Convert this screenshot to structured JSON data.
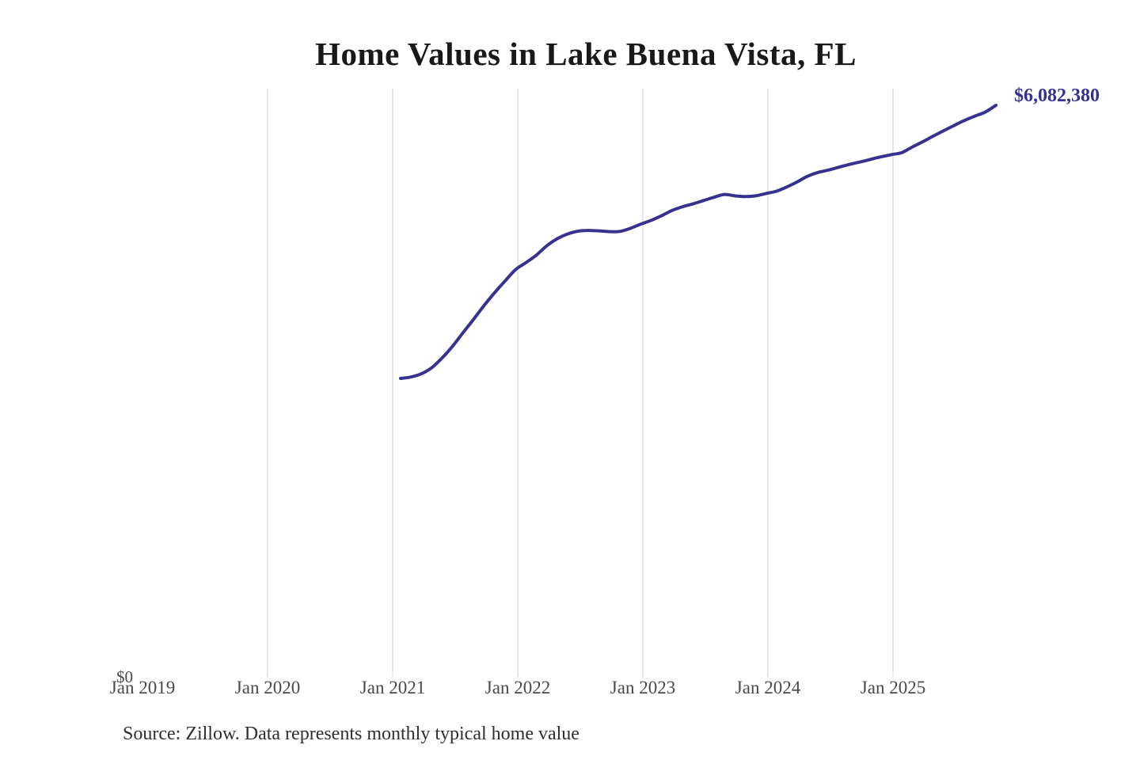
{
  "chart": {
    "title": "Home Values in Lake Buena Vista, FL",
    "end_label": "$6,082,380",
    "source": "Source: Zillow. Data represents monthly typical home value",
    "y_axis": {
      "zero_label": "$0"
    }
  },
  "colors": {
    "background": "#ffffff",
    "line": "#37318f",
    "end_label": "#37318f",
    "gridline": "#cfcfcf",
    "title_text": "#191919",
    "axis_text": "#4a4a4a",
    "source_text": "#2f2f2f"
  },
  "chart_data": {
    "type": "line",
    "title": "Home Values in Lake Buena Vista, FL",
    "series_name": "Monthly typical home value",
    "unit": "USD",
    "legend": "none",
    "grid": "vertical-only",
    "ylim": [
      0,
      6500000
    ],
    "final_value": 6082380,
    "final_value_label": "$6,082,380",
    "x_axis_ticks": [
      "Jan 2019",
      "Jan 2020",
      "Jan 2021",
      "Jan 2022",
      "Jan 2023",
      "Jan 2024",
      "Jan 2025"
    ],
    "x": [
      "2021-01",
      "2021-02",
      "2021-03",
      "2021-04",
      "2021-05",
      "2021-06",
      "2021-07",
      "2021-08",
      "2021-09",
      "2021-10",
      "2021-11",
      "2021-12",
      "2022-01",
      "2022-02",
      "2022-03",
      "2022-04",
      "2022-05",
      "2022-06",
      "2022-07",
      "2022-08",
      "2022-09",
      "2022-10",
      "2022-11",
      "2022-12",
      "2023-01",
      "2023-02",
      "2023-03",
      "2023-04",
      "2023-05",
      "2023-06",
      "2023-07",
      "2023-08",
      "2023-09",
      "2023-10",
      "2023-11",
      "2023-12",
      "2024-01",
      "2024-02",
      "2024-03",
      "2024-04",
      "2024-05",
      "2024-06",
      "2024-07",
      "2024-08",
      "2024-09",
      "2024-10",
      "2024-11",
      "2024-12",
      "2025-01",
      "2025-02",
      "2025-03",
      "2025-04",
      "2025-05",
      "2025-06",
      "2025-07",
      "2025-08",
      "2025-09",
      "2025-10"
    ],
    "values": [
      3180000,
      3195000,
      3230000,
      3295000,
      3400000,
      3525000,
      3670000,
      3810000,
      3955000,
      4090000,
      4215000,
      4335000,
      4410000,
      4490000,
      4590000,
      4665000,
      4715000,
      4745000,
      4752000,
      4748000,
      4740000,
      4742000,
      4775000,
      4820000,
      4860000,
      4910000,
      4965000,
      5005000,
      5035000,
      5070000,
      5105000,
      5135000,
      5120000,
      5112000,
      5120000,
      5145000,
      5170000,
      5215000,
      5270000,
      5330000,
      5370000,
      5395000,
      5425000,
      5455000,
      5480000,
      5508000,
      5535000,
      5558000,
      5580000,
      5640000,
      5695000,
      5755000,
      5812000,
      5868000,
      5922000,
      5968000,
      6012000,
      6082380
    ],
    "annotations": [
      {
        "text": "$6,082,380",
        "position": "line-end"
      },
      {
        "text": "$0",
        "position": "y-axis-bottom"
      }
    ]
  }
}
